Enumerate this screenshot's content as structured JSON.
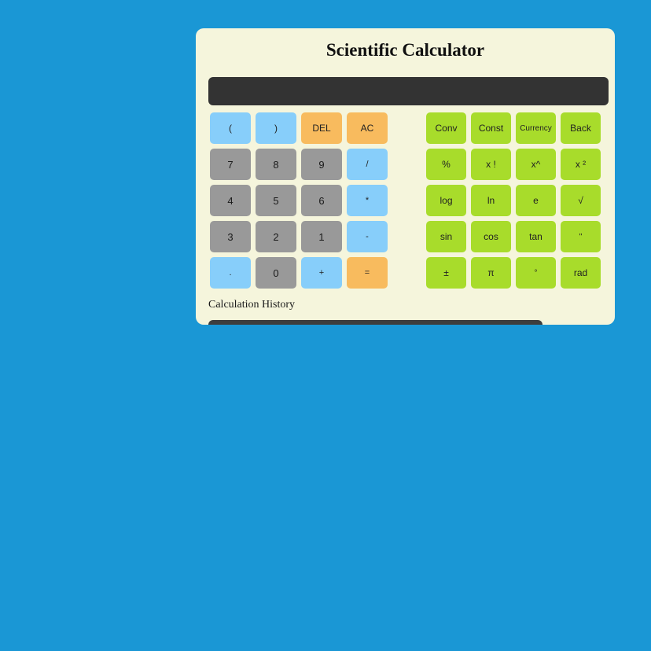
{
  "title": "Scientific Calculator",
  "display": {
    "value": ""
  },
  "history": {
    "label": "Calculation History",
    "value": ""
  },
  "colors": {
    "background": "#1a97d5",
    "card": "#f5f5dc",
    "display": "#333333",
    "button_blue": "#87cefa",
    "button_gray": "#999999",
    "button_orange": "#f8bb5e",
    "button_green": "#a8dc2b"
  },
  "keypad_left": {
    "buttons": [
      {
        "label": "("
      },
      {
        "label": ")"
      },
      {
        "label": "DEL"
      },
      {
        "label": "AC"
      },
      {
        "label": "7"
      },
      {
        "label": "8"
      },
      {
        "label": "9"
      },
      {
        "label": "/"
      },
      {
        "label": "4"
      },
      {
        "label": "5"
      },
      {
        "label": "6"
      },
      {
        "label": "*"
      },
      {
        "label": "3"
      },
      {
        "label": "2"
      },
      {
        "label": "1"
      },
      {
        "label": "-"
      },
      {
        "label": "."
      },
      {
        "label": "0"
      },
      {
        "label": "+"
      },
      {
        "label": "="
      }
    ]
  },
  "keypad_right": {
    "buttons": [
      {
        "label": "Conv"
      },
      {
        "label": "Const"
      },
      {
        "label": "Currency"
      },
      {
        "label": "Back"
      },
      {
        "label": "%"
      },
      {
        "label": "x !"
      },
      {
        "label": "x^"
      },
      {
        "label": "x ²"
      },
      {
        "label": "log"
      },
      {
        "label": "ln"
      },
      {
        "label": "e"
      },
      {
        "label": "√"
      },
      {
        "label": "sin"
      },
      {
        "label": "cos"
      },
      {
        "label": "tan"
      },
      {
        "label": "\""
      },
      {
        "label": "±"
      },
      {
        "label": "π"
      },
      {
        "label": "°"
      },
      {
        "label": "rad"
      }
    ]
  }
}
